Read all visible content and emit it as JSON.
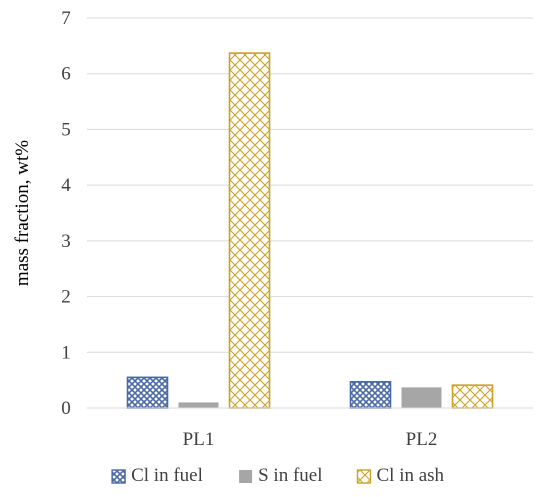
{
  "chart_data": {
    "type": "bar",
    "categories": [
      "PL1",
      "PL2"
    ],
    "series": [
      {
        "name": "Cl in fuel",
        "values": [
          0.55,
          0.47
        ],
        "color": "#4a6aa5",
        "pattern": "dense-crosshatch"
      },
      {
        "name": "S in fuel",
        "values": [
          0.1,
          0.37
        ],
        "color": "#a6a6a6",
        "pattern": "solid"
      },
      {
        "name": "Cl in ash",
        "values": [
          6.37,
          0.41
        ],
        "color": "#c9a227",
        "pattern": "diamond-lattice"
      }
    ],
    "title": "",
    "xlabel": "",
    "ylabel": "mass fraction, wt%",
    "ylim": [
      0,
      7
    ],
    "yticks": [
      0,
      1,
      2,
      3,
      4,
      5,
      6,
      7
    ],
    "grid": "horizontal",
    "legend_position": "bottom"
  }
}
